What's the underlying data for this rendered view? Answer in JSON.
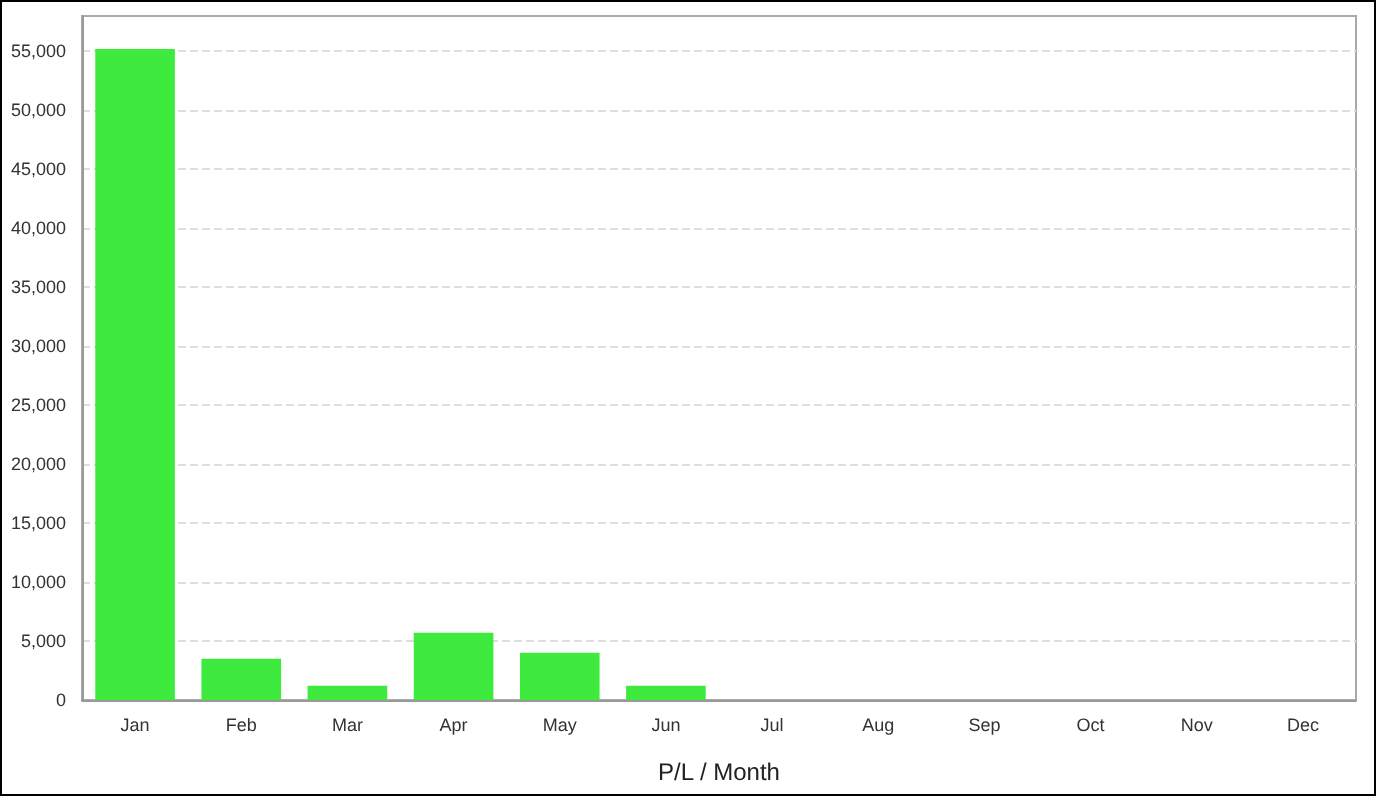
{
  "chart_data": {
    "type": "bar",
    "xlabel": "P/L / Month",
    "categories": [
      "Jan",
      "Feb",
      "Mar",
      "Apr",
      "May",
      "Jun",
      "Jul",
      "Aug",
      "Sep",
      "Oct",
      "Nov",
      "Dec"
    ],
    "values": [
      55200,
      3500,
      1200,
      5700,
      4000,
      1200,
      0,
      0,
      0,
      0,
      0,
      0
    ],
    "color": "#3eea3e",
    "ylim": [
      0,
      58000
    ],
    "yticks": [
      0,
      {
        "value": 5000,
        "label": "5,000"
      },
      {
        "value": 10000,
        "label": "10,000"
      },
      {
        "value": 15000,
        "label": "15,000"
      },
      {
        "value": 20000,
        "label": "20,000"
      },
      {
        "value": 25000,
        "label": "25,000"
      },
      {
        "value": 30000,
        "label": "30,000"
      },
      {
        "value": 35000,
        "label": "35,000"
      },
      {
        "value": 40000,
        "label": "40,000"
      },
      {
        "value": 45000,
        "label": "45,000"
      },
      {
        "value": 50000,
        "label": "50,000"
      },
      {
        "value": 55000,
        "label": "55,000"
      }
    ],
    "grid": "y"
  }
}
